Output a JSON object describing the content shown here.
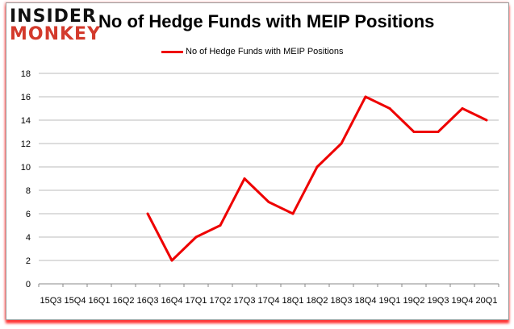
{
  "logo": {
    "line1": "INSIDER",
    "line2": "MONKEY"
  },
  "chart_data": {
    "type": "line",
    "title": "No of Hedge Funds with MEIP Positions",
    "xlabel": "",
    "ylabel": "",
    "categories": [
      "15Q3",
      "15Q4",
      "16Q1",
      "16Q2",
      "16Q3",
      "16Q4",
      "17Q1",
      "17Q2",
      "17Q3",
      "17Q4",
      "18Q1",
      "18Q2",
      "18Q3",
      "18Q4",
      "19Q1",
      "19Q2",
      "19Q3",
      "19Q4",
      "20Q1"
    ],
    "series": [
      {
        "name": "No of Hedge Funds with MEIP Positions",
        "color": "#ee0000",
        "values": [
          null,
          null,
          null,
          null,
          6,
          2,
          4,
          5,
          9,
          7,
          6,
          10,
          12,
          16,
          15,
          13,
          13,
          15,
          14
        ]
      }
    ],
    "ylim": [
      0,
      18
    ],
    "yticks": [
      0,
      2,
      4,
      6,
      8,
      10,
      12,
      14,
      16,
      18
    ],
    "grid": true,
    "legend_position": "top-center"
  }
}
